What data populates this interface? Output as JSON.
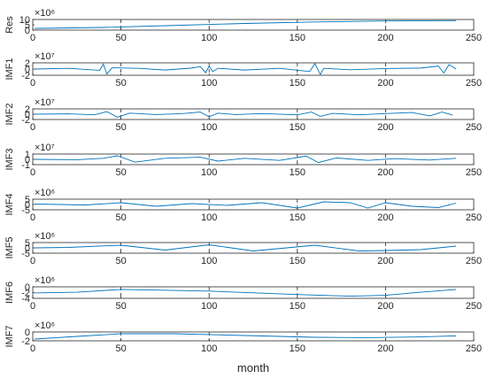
{
  "figure": {
    "xlabel": "month",
    "line_color": "#0072BD",
    "axis_color": "#262626",
    "grid_style": "dashed vertical lines at x ticks"
  },
  "chart_data": [
    {
      "type": "line",
      "ylabel": "Res",
      "exponent_label": "×10⁶",
      "xlim": [
        0,
        250
      ],
      "xticks": [
        "0",
        "50",
        "100",
        "150",
        "200",
        "250"
      ],
      "ylim": [
        -2,
        14
      ],
      "yticks": [
        "0",
        "5",
        "10"
      ],
      "series": [
        {
          "x": [
            1,
            40,
            80,
            120,
            160,
            200,
            240
          ],
          "values": [
            0.5,
            2.0,
            5.0,
            8.0,
            10.3,
            11.8,
            12.3
          ]
        }
      ]
    },
    {
      "type": "line",
      "ylabel": "IMF1",
      "exponent_label": "×10⁷",
      "xlim": [
        0,
        250
      ],
      "xticks": [
        "0",
        "50",
        "100",
        "150",
        "200",
        "250"
      ],
      "ylim": [
        -2.5,
        2.5
      ],
      "yticks": [
        "-2",
        "0",
        "2"
      ],
      "series": [
        {
          "x": [
            1,
            20,
            38,
            40,
            42,
            45,
            60,
            75,
            90,
            95,
            98,
            100,
            102,
            105,
            120,
            140,
            157,
            160,
            163,
            165,
            180,
            200,
            220,
            230,
            233,
            236,
            240
          ],
          "values": [
            0,
            0.3,
            -0.5,
            2.0,
            -2.0,
            0.5,
            0.3,
            -0.4,
            0.4,
            1.0,
            -1.5,
            1.2,
            -1.0,
            0.3,
            -0.4,
            0.3,
            -1.0,
            2.2,
            -2.2,
            0.3,
            -0.3,
            0.2,
            0.4,
            1.2,
            -1.6,
            1.8,
            0
          ]
        }
      ]
    },
    {
      "type": "line",
      "ylabel": "IMF2",
      "exponent_label": "×10⁷",
      "xlim": [
        0,
        250
      ],
      "xticks": [
        "0",
        "50",
        "100",
        "150",
        "200",
        "250"
      ],
      "ylim": [
        -2.5,
        2.5
      ],
      "yticks": [
        "-2",
        "0",
        "2"
      ],
      "series": [
        {
          "x": [
            1,
            20,
            35,
            42,
            48,
            55,
            70,
            85,
            95,
            100,
            105,
            115,
            130,
            150,
            158,
            163,
            170,
            185,
            200,
            215,
            225,
            232,
            238
          ],
          "values": [
            0,
            0.2,
            -0.3,
            1.2,
            -1.4,
            0.5,
            -0.2,
            0.3,
            1.0,
            -1.2,
            0.5,
            -0.2,
            0.3,
            -0.3,
            1.0,
            -1.0,
            0.4,
            -0.3,
            0.3,
            0.8,
            -0.8,
            1.0,
            -0.4
          ]
        }
      ]
    },
    {
      "type": "line",
      "ylabel": "IMF3",
      "exponent_label": "×10⁷",
      "xlim": [
        0,
        250
      ],
      "xticks": [
        "0",
        "50",
        "100",
        "150",
        "200",
        "250"
      ],
      "ylim": [
        -1.5,
        1.5
      ],
      "yticks": [
        "-1",
        "0",
        "1"
      ],
      "series": [
        {
          "x": [
            1,
            25,
            40,
            48,
            58,
            75,
            95,
            105,
            120,
            140,
            155,
            162,
            172,
            190,
            205,
            225,
            240
          ],
          "values": [
            0,
            -0.1,
            0.3,
            1.0,
            -0.8,
            0.3,
            0.6,
            -0.5,
            0.3,
            -0.3,
            0.9,
            -0.9,
            0.4,
            -0.3,
            0.2,
            -0.2,
            0.3
          ]
        }
      ]
    },
    {
      "type": "line",
      "ylabel": "IMF4",
      "exponent_label": "×10⁶",
      "xlim": [
        0,
        250
      ],
      "xticks": [
        "0",
        "50",
        "100",
        "150",
        "200",
        "250"
      ],
      "ylim": [
        -6,
        6
      ],
      "yticks": [
        "-5",
        "0",
        "5"
      ],
      "series": [
        {
          "x": [
            1,
            30,
            50,
            70,
            90,
            110,
            130,
            150,
            165,
            180,
            190,
            200,
            215,
            230,
            240
          ],
          "values": [
            0.5,
            -0.5,
            2.0,
            -2.0,
            1.0,
            -1.0,
            2.0,
            -4.0,
            3.0,
            2.0,
            -4.0,
            2.0,
            -2.0,
            -3.5,
            1.5
          ]
        }
      ]
    },
    {
      "type": "line",
      "ylabel": "IMF5",
      "exponent_label": "×10⁶",
      "xlim": [
        0,
        250
      ],
      "xticks": [
        "0",
        "50",
        "100",
        "150",
        "200",
        "250"
      ],
      "ylim": [
        -6,
        6
      ],
      "yticks": [
        "-5",
        "0",
        "5"
      ],
      "series": [
        {
          "x": [
            1,
            20,
            50,
            75,
            100,
            125,
            160,
            185,
            200,
            220,
            240
          ],
          "values": [
            0,
            0.5,
            3.0,
            -2.5,
            3.5,
            -3.5,
            3.0,
            -3.5,
            -3.0,
            -2.0,
            2.0
          ]
        }
      ]
    },
    {
      "type": "line",
      "ylabel": "IMF6",
      "exponent_label": "×10⁶",
      "xlim": [
        0,
        250
      ],
      "xticks": [
        "0",
        "50",
        "100",
        "150",
        "200",
        "250"
      ],
      "ylim": [
        -5,
        2.5
      ],
      "yticks": [
        "-4",
        "-2",
        "0"
      ],
      "series": [
        {
          "x": [
            1,
            25,
            50,
            100,
            150,
            180,
            200,
            220,
            240
          ],
          "values": [
            -1.5,
            -1.0,
            0.8,
            -0.3,
            -2.5,
            -3.6,
            -3.0,
            -1.0,
            0.8
          ]
        }
      ]
    },
    {
      "type": "line",
      "ylabel": "IMF7",
      "exponent_label": "×10⁶",
      "xlim": [
        0,
        250
      ],
      "xticks": [
        "0",
        "50",
        "100",
        "150",
        "200",
        "250"
      ],
      "ylim": [
        -3,
        2
      ],
      "yticks": [
        "-2",
        "0"
      ],
      "series": [
        {
          "x": [
            1,
            25,
            50,
            80,
            120,
            160,
            190,
            220,
            240
          ],
          "values": [
            -2.0,
            -0.5,
            1.0,
            1.0,
            0.0,
            -1.0,
            -1.2,
            -0.8,
            -0.2
          ]
        }
      ]
    }
  ]
}
